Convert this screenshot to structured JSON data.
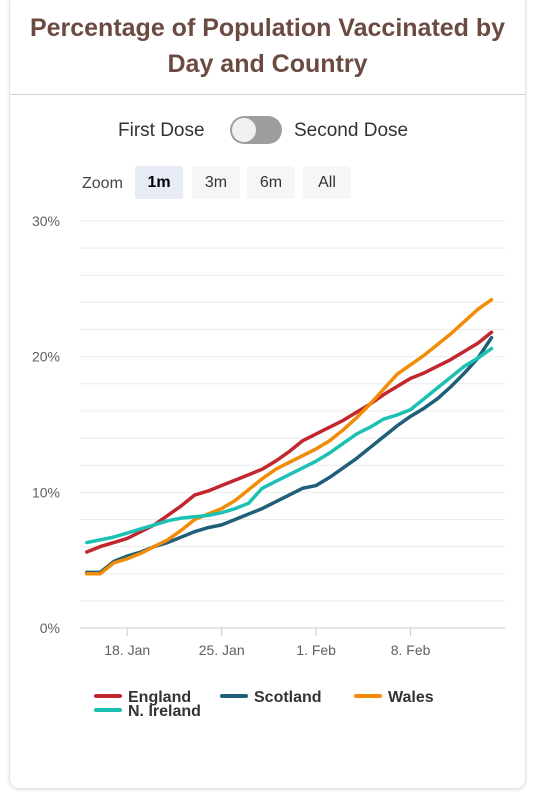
{
  "title_line1": "Percentage of Population Vaccinated by",
  "title_line2": "Day and Country",
  "toggle": {
    "left_label": "First Dose",
    "right_label": "Second Dose"
  },
  "zoom": {
    "label": "Zoom",
    "buttons": [
      "1m",
      "3m",
      "6m",
      "All"
    ],
    "active": "1m"
  },
  "chart_data": {
    "type": "line",
    "title": "Percentage of Population Vaccinated by Day and Country",
    "xlabel": "",
    "ylabel": "",
    "ylim": [
      0,
      30
    ],
    "yticks": [
      0,
      10,
      20,
      30
    ],
    "ytick_labels": [
      "0%",
      "10%",
      "20%",
      "30%"
    ],
    "xlim": [
      0,
      36
    ],
    "x_start": "2021-01-15",
    "xticks": [
      3,
      10,
      17,
      24
    ],
    "xtick_labels": [
      "18. Jan",
      "25. Jan",
      "1. Feb",
      "8. Feb"
    ],
    "grid": true,
    "legend_position": "bottom",
    "series": [
      {
        "name": "England",
        "color": "#c1272d",
        "values": [
          5.6,
          6.0,
          6.3,
          6.6,
          7.1,
          7.6,
          8.3,
          9.0,
          9.8,
          10.1,
          10.5,
          10.9,
          11.3,
          11.7,
          12.3,
          13.0,
          13.8,
          14.3,
          14.8,
          15.3,
          15.9,
          16.5,
          17.2,
          17.8,
          18.4,
          18.8,
          19.3,
          19.8,
          20.4,
          21.0,
          21.8
        ]
      },
      {
        "name": "Scotland",
        "color": "#1f5f7a",
        "values": [
          4.1,
          4.1,
          4.9,
          5.3,
          5.6,
          6.0,
          6.3,
          6.7,
          7.1,
          7.4,
          7.6,
          8.0,
          8.4,
          8.8,
          9.3,
          9.8,
          10.3,
          10.5,
          11.1,
          11.8,
          12.5,
          13.3,
          14.1,
          14.9,
          15.6,
          16.2,
          16.9,
          17.8,
          18.8,
          19.9,
          21.4
        ]
      },
      {
        "name": "Wales",
        "color": "#f28c06",
        "values": [
          4.0,
          4.0,
          4.8,
          5.1,
          5.5,
          6.0,
          6.5,
          7.2,
          8.0,
          8.4,
          8.8,
          9.4,
          10.2,
          11.0,
          11.7,
          12.2,
          12.7,
          13.2,
          13.8,
          14.6,
          15.5,
          16.5,
          17.6,
          18.7,
          19.4,
          20.1,
          20.9,
          21.7,
          22.6,
          23.5,
          24.2
        ]
      },
      {
        "name": "N. Ireland",
        "color": "#1bc1b2",
        "values": [
          6.3,
          6.5,
          6.7,
          7.0,
          7.3,
          7.6,
          7.9,
          8.1,
          8.2,
          8.3,
          8.5,
          8.8,
          9.2,
          10.3,
          10.8,
          11.3,
          11.8,
          12.3,
          12.9,
          13.6,
          14.3,
          14.8,
          15.4,
          15.7,
          16.1,
          16.9,
          17.7,
          18.5,
          19.3,
          19.9,
          20.6
        ]
      }
    ]
  }
}
